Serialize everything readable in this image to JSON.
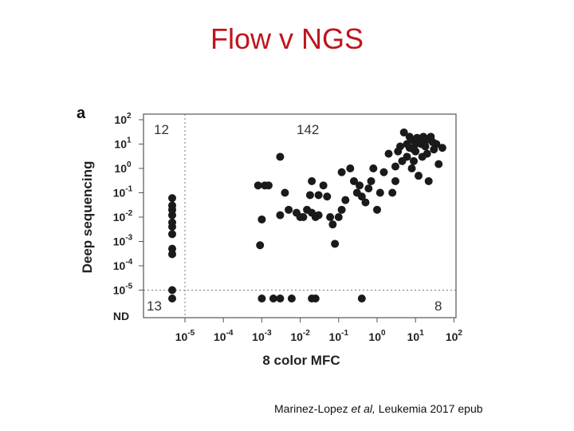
{
  "slide": {
    "title": "Flow v NGS",
    "citation": {
      "authors": "Marinez-Lopez ",
      "et_al": "et al,",
      "journal": " Leukemia 2017 epub"
    }
  },
  "chart_data": {
    "type": "scatter",
    "panel_label": "a",
    "xlabel": "8 color MFC",
    "ylabel": "Deep sequencing",
    "x_scale": "log10",
    "y_scale": "log10",
    "x_ticks": [
      {
        "base": "10",
        "exp": "-5"
      },
      {
        "base": "10",
        "exp": "-4"
      },
      {
        "base": "10",
        "exp": "-3"
      },
      {
        "base": "10",
        "exp": "-2"
      },
      {
        "base": "10",
        "exp": "-1"
      },
      {
        "base": "10",
        "exp": "0"
      },
      {
        "base": "10",
        "exp": "1"
      },
      {
        "base": "10",
        "exp": "2"
      }
    ],
    "y_ticks": [
      {
        "base": "10",
        "exp": "2"
      },
      {
        "base": "10",
        "exp": "1"
      },
      {
        "base": "10",
        "exp": "0"
      },
      {
        "base": "10",
        "exp": "-1"
      },
      {
        "base": "10",
        "exp": "-2"
      },
      {
        "base": "10",
        "exp": "-3"
      },
      {
        "base": "10",
        "exp": "-4"
      },
      {
        "base": "10",
        "exp": "-5"
      }
    ],
    "not_detected_label": "ND",
    "thresholds": {
      "x": 1e-05,
      "y": 1e-05
    },
    "quadrant_counts": {
      "top_left": "12",
      "top_right": "142",
      "bottom_left": "13",
      "bottom_right": "8"
    },
    "points_x_nd": [
      6e-05,
      3e-05,
      8e-06,
      2e-06,
      1e-06,
      1e-05,
      1e-06,
      3e-06,
      1e-06,
      1e-05,
      1e-05
    ],
    "points_y_nd": [
      0.06,
      0.03,
      0.02,
      0.012,
      0.006,
      0.004,
      0.002,
      0.0003,
      0.0005,
      1e-05
    ],
    "points_both_nd_count": 1,
    "points_x_nd_y": "ND",
    "points_y_nd_x": [
      0.001,
      0.002,
      0.003,
      0.006,
      0.02,
      0.025,
      0.4
    ],
    "points": [
      {
        "x": 0.0008,
        "y": 0.2
      },
      {
        "x": 0.0012,
        "y": 0.2
      },
      {
        "x": 0.003,
        "y": 3
      },
      {
        "x": 0.0015,
        "y": 0.2
      },
      {
        "x": 0.001,
        "y": 0.008
      },
      {
        "x": 0.004,
        "y": 0.1
      },
      {
        "x": 0.005,
        "y": 0.02
      },
      {
        "x": 0.003,
        "y": 0.012
      },
      {
        "x": 0.0009,
        "y": 0.0007
      },
      {
        "x": 0.008,
        "y": 0.015
      },
      {
        "x": 0.01,
        "y": 0.01
      },
      {
        "x": 0.012,
        "y": 0.01
      },
      {
        "x": 0.015,
        "y": 0.02
      },
      {
        "x": 0.02,
        "y": 0.015
      },
      {
        "x": 0.025,
        "y": 0.01
      },
      {
        "x": 0.03,
        "y": 0.012
      },
      {
        "x": 0.02,
        "y": 0.3
      },
      {
        "x": 0.018,
        "y": 0.08
      },
      {
        "x": 0.03,
        "y": 0.08
      },
      {
        "x": 0.04,
        "y": 0.2
      },
      {
        "x": 0.05,
        "y": 0.07
      },
      {
        "x": 0.06,
        "y": 0.01
      },
      {
        "x": 0.07,
        "y": 0.005
      },
      {
        "x": 0.08,
        "y": 0.0008
      },
      {
        "x": 0.1,
        "y": 0.01
      },
      {
        "x": 0.12,
        "y": 0.02
      },
      {
        "x": 0.15,
        "y": 0.05
      },
      {
        "x": 0.12,
        "y": 0.7
      },
      {
        "x": 0.2,
        "y": 1
      },
      {
        "x": 0.25,
        "y": 0.3
      },
      {
        "x": 0.3,
        "y": 0.1
      },
      {
        "x": 0.35,
        "y": 0.2
      },
      {
        "x": 0.4,
        "y": 0.07
      },
      {
        "x": 0.5,
        "y": 0.04
      },
      {
        "x": 0.6,
        "y": 0.15
      },
      {
        "x": 0.7,
        "y": 0.3
      },
      {
        "x": 0.8,
        "y": 1
      },
      {
        "x": 1.0,
        "y": 0.02
      },
      {
        "x": 1.2,
        "y": 0.1
      },
      {
        "x": 1.5,
        "y": 0.7
      },
      {
        "x": 2.0,
        "y": 4
      },
      {
        "x": 2.5,
        "y": 0.1
      },
      {
        "x": 3.0,
        "y": 0.3
      },
      {
        "x": 3.5,
        "y": 5
      },
      {
        "x": 4.0,
        "y": 8
      },
      {
        "x": 5.0,
        "y": 30
      },
      {
        "x": 6.0,
        "y": 3
      },
      {
        "x": 7.0,
        "y": 7
      },
      {
        "x": 8.0,
        "y": 1
      },
      {
        "x": 9.0,
        "y": 2
      },
      {
        "x": 10.0,
        "y": 5
      },
      {
        "x": 12.0,
        "y": 0.5
      },
      {
        "x": 14.0,
        "y": 10
      },
      {
        "x": 16.0,
        "y": 20
      },
      {
        "x": 18.0,
        "y": 8
      },
      {
        "x": 20.0,
        "y": 4
      },
      {
        "x": 22.0,
        "y": 0.3
      },
      {
        "x": 25.0,
        "y": 20
      },
      {
        "x": 28.0,
        "y": 12
      },
      {
        "x": 30.0,
        "y": 6
      },
      {
        "x": 35.0,
        "y": 10
      },
      {
        "x": 40.0,
        "y": 1.5
      },
      {
        "x": 50.0,
        "y": 7
      },
      {
        "x": 8.0,
        "y": 15
      },
      {
        "x": 12.0,
        "y": 12
      },
      {
        "x": 6.0,
        "y": 10
      },
      {
        "x": 4.5,
        "y": 2
      },
      {
        "x": 3.0,
        "y": 1.2
      },
      {
        "x": 10.0,
        "y": 10
      },
      {
        "x": 15.0,
        "y": 3
      },
      {
        "x": 9.0,
        "y": 6
      },
      {
        "x": 20.0,
        "y": 15
      },
      {
        "x": 11.0,
        "y": 18
      },
      {
        "x": 7.0,
        "y": 20
      }
    ]
  }
}
